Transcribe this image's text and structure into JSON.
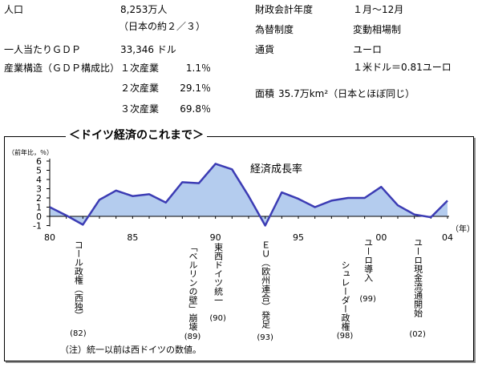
{
  "profile": {
    "population": {
      "label": "人口",
      "value": "8,253万人",
      "note": "（日本の約２／３）"
    },
    "gdp_per_capita": {
      "label": "一人当たりＧＤＰ",
      "value": "33,346 ドル"
    },
    "industry": {
      "label": "産業構造（ＧＤＰ構成比）",
      "sectors": [
        {
          "name": "１次産業",
          "share": "1.1％"
        },
        {
          "name": "２次産業",
          "share": "29.1％"
        },
        {
          "name": "３次産業",
          "share": "69.8％"
        }
      ]
    },
    "fiscal_year": {
      "label": "財政会計年度",
      "value": "１月〜12月"
    },
    "exchange_regime": {
      "label": "為替制度",
      "value": "変動相場制"
    },
    "currency": {
      "label": "通貨",
      "value": "ユーロ",
      "rate": "１米ドル＝0.81ユーロ"
    },
    "area": {
      "label": "面積",
      "value": "35.7万km²（日本とほぼ同じ）"
    }
  },
  "chart_data": {
    "type": "area",
    "title": "＜ドイツ経済のこれまで＞",
    "ylabel": "（前年比，％）",
    "xlabel": "（年）",
    "xlim": [
      1980,
      2004
    ],
    "ylim": [
      -1,
      6
    ],
    "grid": false,
    "y_ticks": [
      6,
      5,
      4,
      3,
      2,
      1,
      0,
      -1
    ],
    "x_ticks": [
      1980,
      1985,
      1990,
      1995,
      2000,
      2004
    ],
    "x_tick_labels": [
      "80",
      "85",
      "90",
      "95",
      "00",
      "04"
    ],
    "x": [
      1980,
      1981,
      1982,
      1983,
      1984,
      1985,
      1986,
      1987,
      1988,
      1989,
      1990,
      1991,
      1992,
      1993,
      1994,
      1995,
      1996,
      1997,
      1998,
      1999,
      2000,
      2001,
      2002,
      2003,
      2004
    ],
    "series": [
      {
        "name": "経済成長率",
        "values": [
          1.0,
          0.1,
          -0.9,
          1.8,
          2.8,
          2.2,
          2.4,
          1.5,
          3.7,
          3.6,
          5.7,
          5.1,
          2.2,
          -1.0,
          2.6,
          1.9,
          1.0,
          1.7,
          2.0,
          2.0,
          3.2,
          1.2,
          0.2,
          -0.1,
          1.7
        ]
      }
    ],
    "events": [
      {
        "year": 1982,
        "label": "コール政権（西独）",
        "year_label": "(82)"
      },
      {
        "year": 1989,
        "label": "「ベルリンの壁」崩壊",
        "year_label": "(89)"
      },
      {
        "year": 1990,
        "label": "東西ドイツ統一",
        "year_label": "(90)"
      },
      {
        "year": 1993,
        "label": "ＥＵ（欧州連合）発足",
        "year_label": "(93)"
      },
      {
        "year": 1998,
        "label": "シュレーダー政権",
        "year_label": "(98)"
      },
      {
        "year": 1999,
        "label": "ユーロ導入",
        "year_label": "(99)"
      },
      {
        "year": 2002,
        "label": "ユーロ現金流通開始",
        "year_label": "(02)"
      }
    ],
    "note": "（注）統一以前は西ドイツの数値。",
    "colors": {
      "line": "#3c3cb4",
      "fill": "#b4ccee",
      "axis": "#000000"
    }
  }
}
